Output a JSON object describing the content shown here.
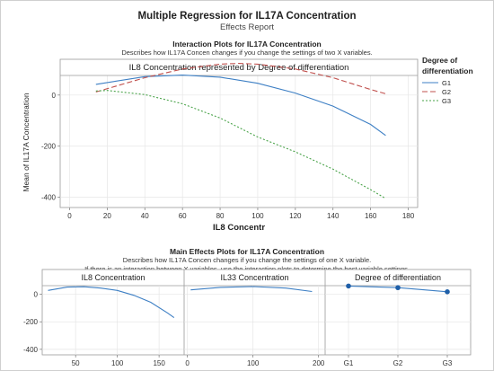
{
  "report": {
    "title": "Multiple Regression for IL17A Concentration",
    "subtitle": "Effects Report"
  },
  "interaction": {
    "heading": "Interaction Plots for IL17A Concentration",
    "description": "Describes how IL17A Concen changes if you change the settings of two X variables."
  },
  "main_effects": {
    "heading": "Main Effects Plots for IL17A Concentration",
    "description_1": "Describes how IL17A Concen changes if you change the settings of one X variable.",
    "description_2": "If there is an interaction between X variables, use the interaction plots to determine the best variable settings."
  },
  "chart_data": [
    {
      "type": "line",
      "panel_label": "IL8 Concentration represented by Degree of differentiation",
      "xlabel": "IL8 Concentr",
      "ylabel": "Mean of IL17A Concentration",
      "xlim": [
        -5,
        185
      ],
      "ylim": [
        -440,
        140
      ],
      "xticks": [
        0,
        20,
        40,
        60,
        80,
        100,
        120,
        140,
        160,
        180
      ],
      "yticks": [
        0,
        -200,
        -400
      ],
      "grid": true,
      "legend_title": "Degree of differentiation",
      "legend_position": "right",
      "series": [
        {
          "name": "G1",
          "color": "#3d7fc4",
          "dash": "solid",
          "x": [
            14,
            40,
            60,
            80,
            100,
            120,
            140,
            160,
            168
          ],
          "y": [
            42,
            72,
            78,
            70,
            46,
            8,
            -43,
            -115,
            -158
          ]
        },
        {
          "name": "G2",
          "color": "#c0504d",
          "dash": "dashed",
          "x": [
            14,
            40,
            60,
            80,
            90,
            100,
            120,
            140,
            160,
            168
          ],
          "y": [
            12,
            68,
            102,
            121,
            124,
            121,
            102,
            68,
            22,
            5
          ]
        },
        {
          "name": "G3",
          "color": "#4aa34a",
          "dash": "dotted",
          "x": [
            14,
            20,
            40,
            60,
            80,
            100,
            120,
            140,
            160,
            168
          ],
          "y": [
            16,
            18,
            2,
            -34,
            -90,
            -164,
            -222,
            -290,
            -370,
            -405
          ]
        }
      ]
    },
    {
      "type": "line",
      "panel_label": "IL8 Concentration",
      "xlim": [
        10,
        180
      ],
      "ylim": [
        -440,
        180
      ],
      "xticks": [
        50,
        100,
        150
      ],
      "yticks": [
        0,
        -200,
        -400
      ],
      "grid": true,
      "series": [
        {
          "name": "",
          "color": "#3d7fc4",
          "x": [
            17,
            40,
            60,
            80,
            100,
            120,
            140,
            160,
            168
          ],
          "y": [
            28,
            52,
            55,
            45,
            28,
            -8,
            -58,
            -135,
            -170
          ]
        }
      ]
    },
    {
      "type": "line",
      "panel_label": "IL33 Concentration",
      "xlim": [
        -5,
        210
      ],
      "ylim": [
        -440,
        180
      ],
      "xticks": [
        0,
        100,
        200
      ],
      "grid": true,
      "series": [
        {
          "name": "",
          "color": "#3d7fc4",
          "x": [
            5,
            50,
            100,
            150,
            190
          ],
          "y": [
            32,
            50,
            56,
            45,
            20
          ]
        }
      ]
    },
    {
      "type": "line",
      "panel_label": "Degree of differentiation",
      "categories": [
        "G1",
        "G2",
        "G3"
      ],
      "ylim": [
        -440,
        180
      ],
      "grid": true,
      "markers": true,
      "series": [
        {
          "name": "",
          "color": "#3d7fc4",
          "values": [
            60,
            48,
            18
          ]
        }
      ]
    }
  ]
}
